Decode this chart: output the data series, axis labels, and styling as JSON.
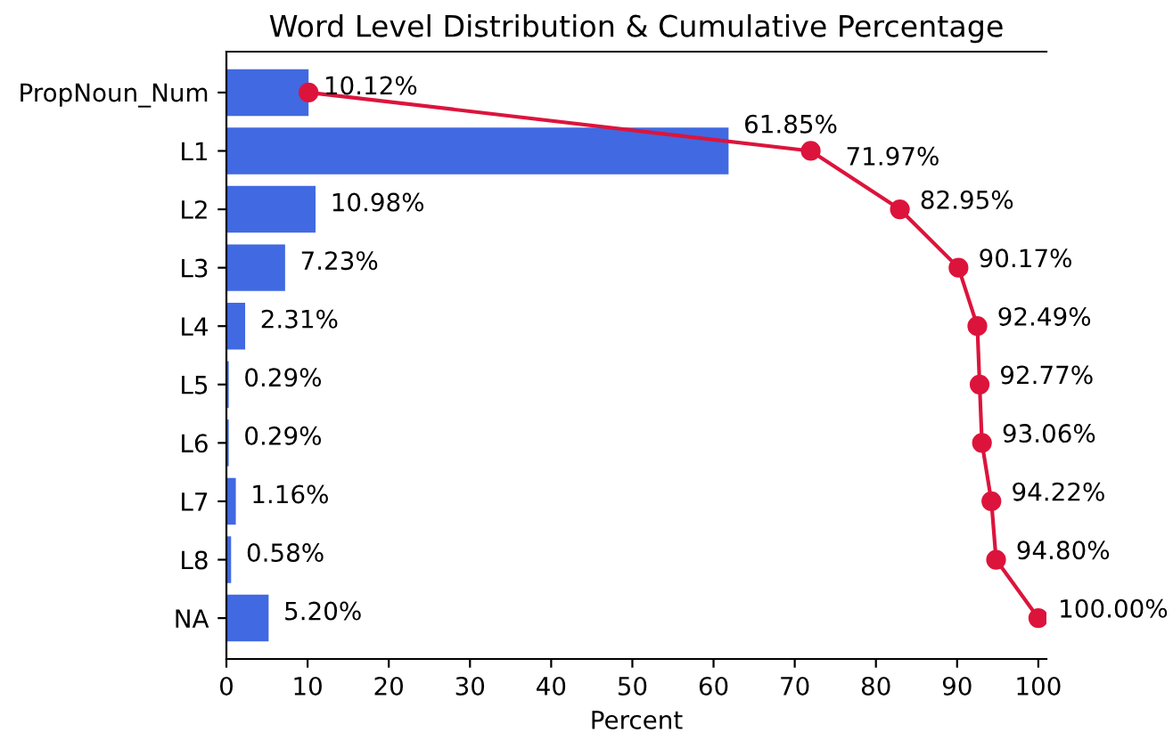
{
  "chart_data": {
    "type": "bar",
    "orientation": "horizontal",
    "title": "Word Level Distribution & Cumulative Percentage",
    "xlabel": "Percent",
    "categories": [
      "PropNoun_Num",
      "L1",
      "L2",
      "L3",
      "L4",
      "L5",
      "L6",
      "L7",
      "L8",
      "NA"
    ],
    "series": [
      {
        "color": "#4169e1",
        "values": [
          10.12,
          61.85,
          10.98,
          7.23,
          2.31,
          0.29,
          0.29,
          1.16,
          0.58,
          5.2
        ],
        "value_labels": [
          "10.12%",
          "61.85%",
          "10.98%",
          "7.23%",
          "2.31%",
          "0.29%",
          "0.29%",
          "1.16%",
          "0.58%",
          "5.20%"
        ]
      },
      {
        "type": "line",
        "color": "#dc143c",
        "marker": "circle",
        "values": [
          10.12,
          71.97,
          82.95,
          90.17,
          92.49,
          92.77,
          93.06,
          94.22,
          94.8,
          100.0
        ],
        "value_labels": [
          null,
          "71.97%",
          "82.95%",
          "90.17%",
          "92.49%",
          "92.77%",
          "93.06%",
          "94.22%",
          "94.80%",
          "100.00%"
        ]
      }
    ],
    "xlim": [
      0,
      101
    ],
    "xticks": [
      0,
      10,
      20,
      30,
      40,
      50,
      60,
      70,
      80,
      90,
      100
    ],
    "grid": false,
    "legend": false
  }
}
